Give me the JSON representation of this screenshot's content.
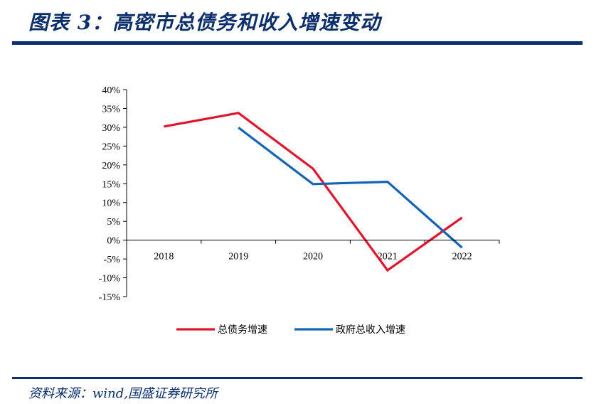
{
  "header": {
    "title": "图表 3：高密市总债务和收入增速变动"
  },
  "footer": {
    "source": "资料来源：wind,国盛证券研究所"
  },
  "chart_data": {
    "type": "line",
    "title": "",
    "xlabel": "",
    "ylabel": "",
    "categories": [
      "2018",
      "2019",
      "2020",
      "2021",
      "2022"
    ],
    "y_tick_labels": [
      "40%",
      "35%",
      "30%",
      "25%",
      "20%",
      "15%",
      "10%",
      "5%",
      "0%",
      "-5%",
      "-10%",
      "-15%"
    ],
    "ylim": [
      -15,
      40
    ],
    "y_unit": "%",
    "grid": false,
    "legend_position": "bottom",
    "series": [
      {
        "name": "总债务增速",
        "color": "#e0142a",
        "values": [
          30.2,
          33.8,
          19.0,
          -8.0,
          6.0
        ]
      },
      {
        "name": "政府总收入增速",
        "color": "#1464b4",
        "values": [
          null,
          29.9,
          14.9,
          15.5,
          -2.0
        ]
      }
    ]
  }
}
